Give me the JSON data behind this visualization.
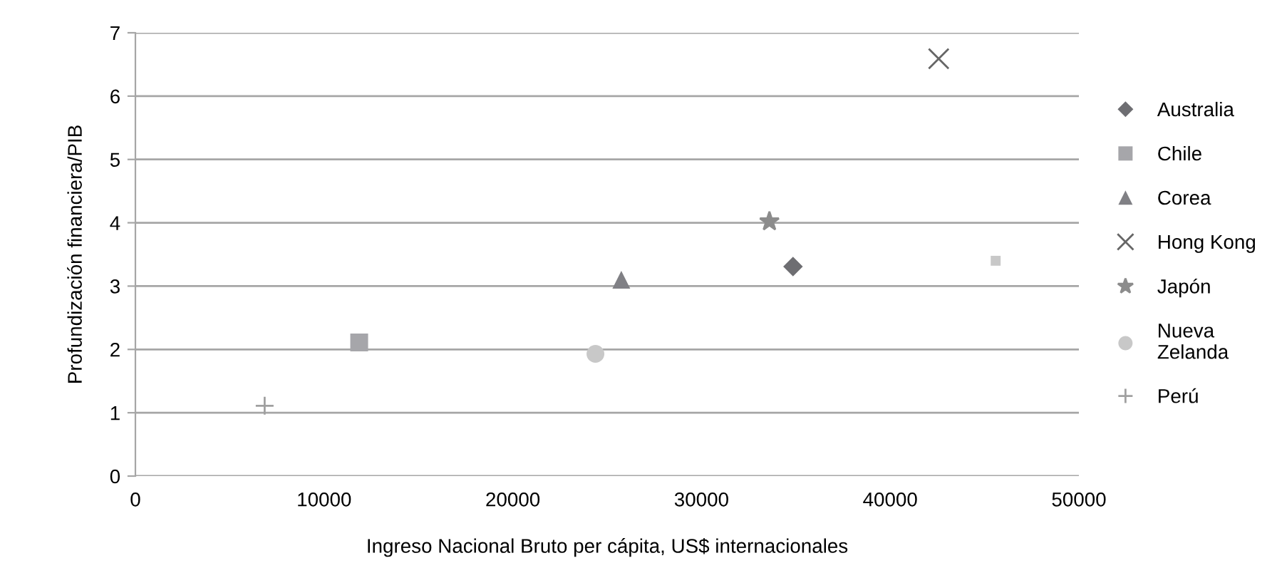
{
  "chart_data": {
    "type": "scatter",
    "xlabel": "Ingreso Nacional Bruto per cápita, US$ internacionales",
    "ylabel": "Profundización financiera/PIB",
    "xlim": [
      0,
      50000
    ],
    "xticks": [
      0,
      10000,
      20000,
      30000,
      40000,
      50000
    ],
    "ylim": [
      0,
      7
    ],
    "yticks": [
      0,
      1,
      2,
      3,
      4,
      5,
      6,
      7
    ],
    "grid": "y",
    "legend": "right",
    "series": [
      {
        "name": "Australia",
        "color": "#6e6e72",
        "marker": "diamond",
        "x": [
          34850
        ],
        "values": [
          3.31
        ]
      },
      {
        "name": "Chile",
        "color": "#a6a6aa",
        "marker": "square",
        "x": [
          11860
        ],
        "values": [
          2.11
        ]
      },
      {
        "name": "Corea",
        "color": "#808085",
        "marker": "triangle",
        "x": [
          25750
        ],
        "values": [
          3.1
        ]
      },
      {
        "name": "Hong Kong",
        "color": "#666666",
        "marker": "cross",
        "x": [
          42570
        ],
        "values": [
          6.59
        ]
      },
      {
        "name": "Japón",
        "color": "#8c8c8c",
        "marker": "star",
        "x": [
          33600
        ],
        "values": [
          4.02
        ]
      },
      {
        "name": "Nueva Zelanda",
        "color": "#c8c8c8",
        "marker": "circle",
        "x": [
          24380
        ],
        "values": [
          1.93
        ]
      },
      {
        "name": "Perú",
        "color": "#a0a0a0",
        "marker": "plus",
        "x": [
          6850
        ],
        "values": [
          1.11
        ]
      },
      {
        "color": "#c8c8c8",
        "marker": "square",
        "x": [
          45590
        ],
        "values": [
          3.4
        ]
      }
    ]
  }
}
